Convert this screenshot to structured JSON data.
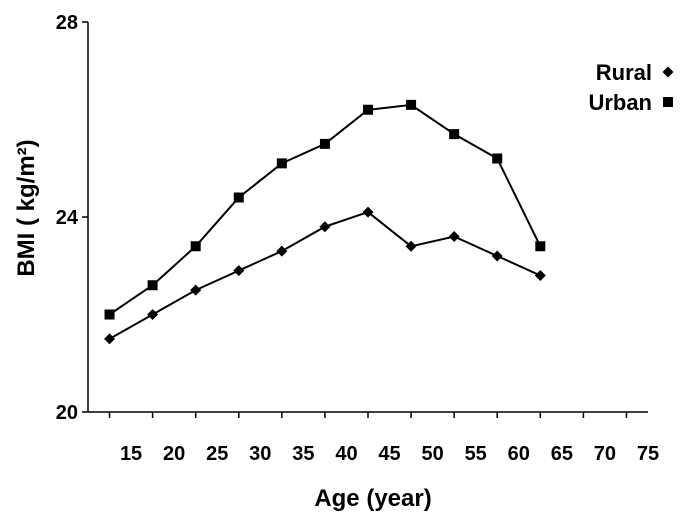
{
  "chart_data": {
    "type": "line",
    "title": "",
    "xlabel": "Age (year)",
    "ylabel": "BMI ( kg/m²)",
    "xlim": [
      10,
      75
    ],
    "ylim": [
      20,
      28
    ],
    "x_ticks": [
      15,
      20,
      25,
      30,
      35,
      40,
      45,
      50,
      55,
      60,
      65,
      70,
      75
    ],
    "y_ticks": [
      20,
      24,
      28
    ],
    "grid": false,
    "legend_position": "top-right",
    "x": [
      12.5,
      17.5,
      22.5,
      27.5,
      32.5,
      37.5,
      42.5,
      47.5,
      52.5,
      57.5,
      62.5
    ],
    "series": [
      {
        "name": "Rural",
        "marker": "diamond",
        "color": "#000000",
        "values": [
          21.5,
          22.0,
          22.5,
          22.9,
          23.3,
          23.8,
          24.1,
          23.4,
          23.6,
          23.2,
          22.8
        ]
      },
      {
        "name": "Urban",
        "marker": "square",
        "color": "#000000",
        "values": [
          22.0,
          22.6,
          23.4,
          24.4,
          25.1,
          25.5,
          26.2,
          26.3,
          25.7,
          25.2,
          23.4
        ]
      }
    ]
  }
}
